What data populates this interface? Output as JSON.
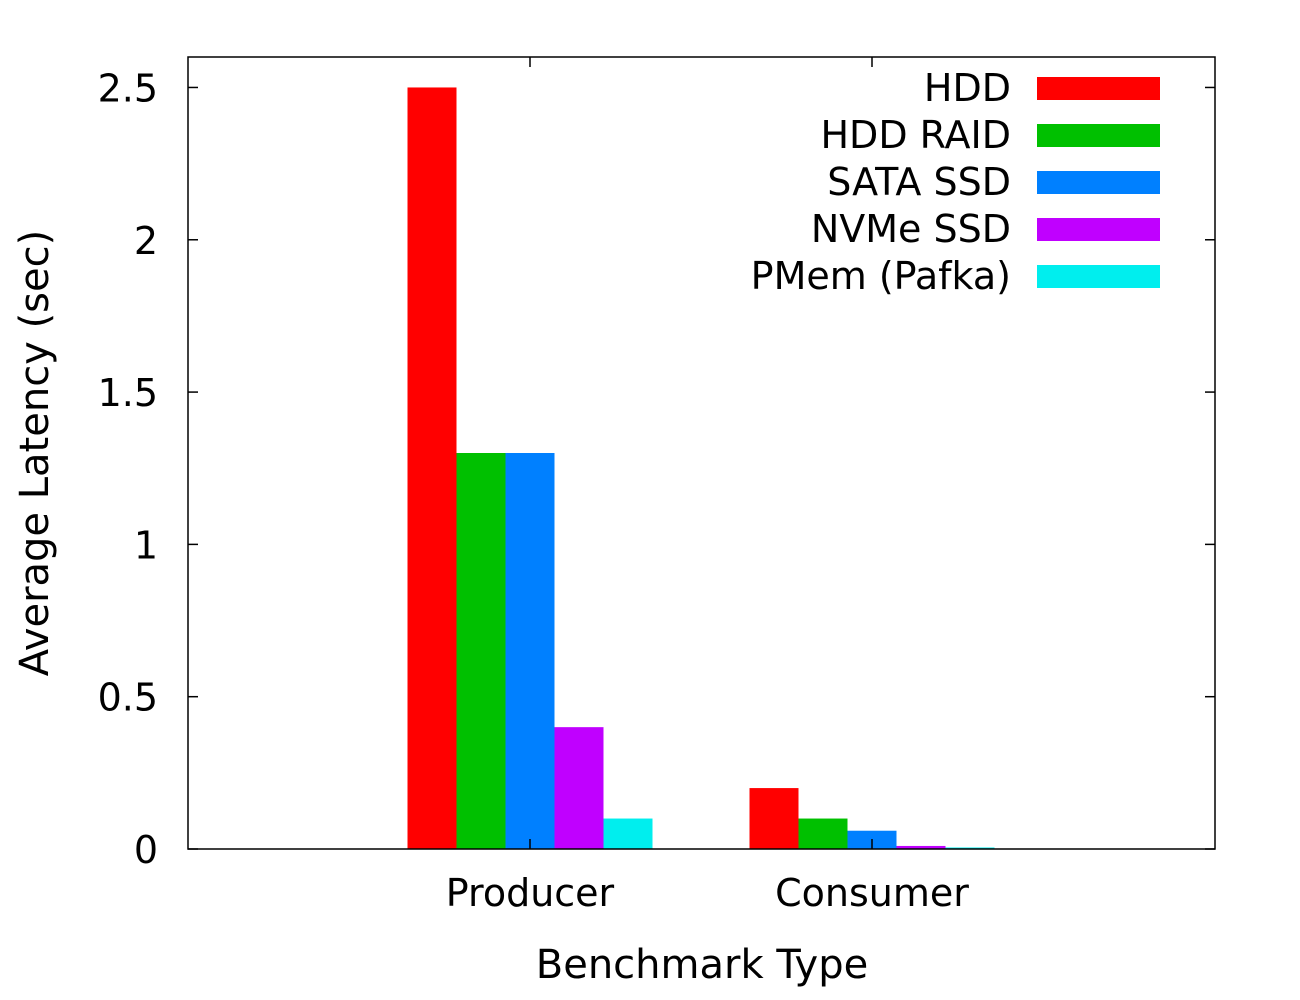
{
  "chart_data": {
    "type": "bar",
    "title": "",
    "xlabel": "Benchmark Type",
    "ylabel": "Average Latency (sec)",
    "ylim": [
      0,
      2.6
    ],
    "yticks": [
      "0",
      "0.5",
      "1",
      "1.5",
      "2",
      "2.5"
    ],
    "categories": [
      "Producer",
      "Consumer"
    ],
    "series": [
      {
        "name": "HDD",
        "color": "#ff0000",
        "values": [
          2.5,
          0.2
        ]
      },
      {
        "name": "HDD RAID",
        "color": "#00c000",
        "values": [
          1.3,
          0.1
        ]
      },
      {
        "name": "SATA SSD",
        "color": "#0080ff",
        "values": [
          1.3,
          0.06
        ]
      },
      {
        "name": "NVMe SSD",
        "color": "#c000ff",
        "values": [
          0.4,
          0.01
        ]
      },
      {
        "name": "PMem (Pafka)",
        "color": "#00eeee",
        "values": [
          0.1,
          0.005
        ]
      }
    ],
    "legend_position": "top-right",
    "grid": false
  }
}
